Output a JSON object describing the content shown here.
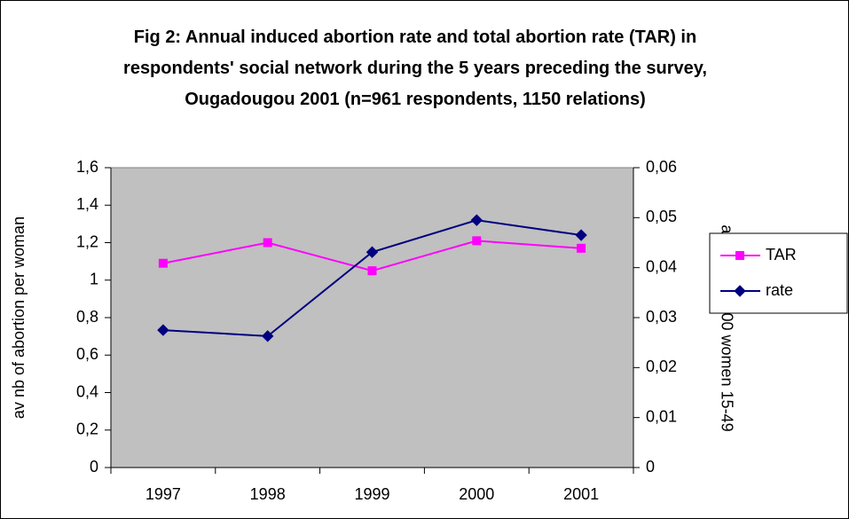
{
  "chart_data": {
    "type": "line",
    "title": "Fig 2: Annual induced abortion rate and total abortion rate (TAR) in respondents' social network during the 5 years preceding the survey, Ougadougou 2001 (n=961 respondents, 1150 relations)",
    "ylabel": "av nb of abortion per woman",
    "y2label": "abortions/1000 women 15-49",
    "categories": [
      "1997",
      "1998",
      "1999",
      "2000",
      "2001"
    ],
    "series": [
      {
        "name": "TAR",
        "color": "#ff00ff",
        "marker": "square",
        "axis": "y",
        "values": [
          1.09,
          1.2,
          1.05,
          1.21,
          1.17
        ]
      },
      {
        "name": "rate",
        "color": "#000080",
        "marker": "diamond",
        "axis": "y2",
        "values": [
          0.0275,
          0.0263,
          0.0431,
          0.0495,
          0.0465
        ]
      }
    ],
    "ylim": [
      0,
      1.6
    ],
    "yticks": [
      0,
      {
        "value": 0.2,
        "label": "0,2"
      },
      {
        "value": 0.4,
        "label": "0,4"
      },
      {
        "value": 0.6,
        "label": "0,6"
      },
      {
        "value": 0.8,
        "label": "0,8"
      },
      1,
      {
        "value": 1.2,
        "label": "1,2"
      },
      {
        "value": 1.4,
        "label": "1,4"
      },
      {
        "value": 1.6,
        "label": "1,6"
      }
    ],
    "y2lim": [
      0,
      0.06
    ],
    "y2ticks": [
      0,
      {
        "value": 0.01,
        "label": "0,01"
      },
      {
        "value": 0.02,
        "label": "0,02"
      },
      {
        "value": 0.03,
        "label": "0,03"
      },
      {
        "value": 0.04,
        "label": "0,04"
      },
      {
        "value": 0.05,
        "label": "0,05"
      },
      {
        "value": 0.06,
        "label": "0,06"
      }
    ],
    "plot_background": "#c0c0c0",
    "legend": "right"
  }
}
